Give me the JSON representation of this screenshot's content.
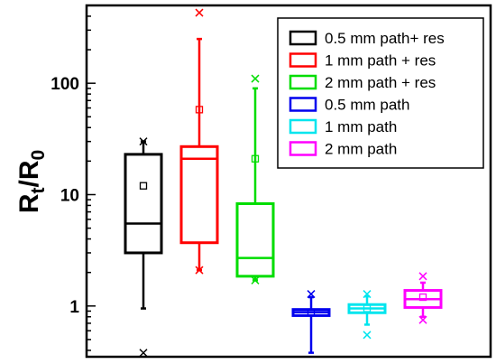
{
  "chart_data": {
    "type": "box",
    "ylabel": {
      "main": "R",
      "sub1": "t",
      "mid": "/R",
      "sub2": "0"
    },
    "yscale": "log",
    "ylim": [
      0.35,
      500
    ],
    "yticks": [
      {
        "value": 1,
        "label": "1"
      },
      {
        "value": 10,
        "label": "10"
      },
      {
        "value": 100,
        "label": "100"
      }
    ],
    "legend_position": "top-right",
    "grid": false,
    "series": [
      {
        "name": "0.5 mm path+ res",
        "color": "#000000",
        "whisker_low": 0.95,
        "q1": 3.0,
        "median": 5.5,
        "q3": 23,
        "whisker_high": 30,
        "mean": 12,
        "outliers": [
          0.38,
          30
        ]
      },
      {
        "name": "1 mm path + res",
        "color": "#ff0000",
        "whisker_low": 2.1,
        "q1": 3.7,
        "median": 21,
        "q3": 27,
        "whisker_high": 250,
        "mean": 58,
        "outliers": [
          430,
          2.1
        ]
      },
      {
        "name": "2 mm path + res",
        "color": "#00dd00",
        "whisker_low": 1.7,
        "q1": 1.85,
        "median": 2.7,
        "q3": 8.3,
        "whisker_high": 90,
        "mean": 21,
        "outliers": [
          110,
          1.7
        ]
      },
      {
        "name": "0.5 mm path",
        "color": "#0000ee",
        "whisker_low": 0.38,
        "q1": 0.82,
        "median": 0.88,
        "q3": 0.93,
        "whisker_high": 1.2,
        "mean": 0.88,
        "outliers": [
          1.28
        ]
      },
      {
        "name": "1 mm path",
        "color": "#00e5ee",
        "whisker_low": 0.68,
        "q1": 0.87,
        "median": 0.95,
        "q3": 1.03,
        "whisker_high": 1.22,
        "mean": 0.95,
        "outliers": [
          1.28,
          0.55
        ]
      },
      {
        "name": "2 mm path",
        "color": "#ff00ff",
        "whisker_low": 0.8,
        "q1": 0.97,
        "median": 1.15,
        "q3": 1.38,
        "whisker_high": 1.62,
        "mean": 1.2,
        "outliers": [
          1.85,
          0.75
        ]
      }
    ]
  }
}
